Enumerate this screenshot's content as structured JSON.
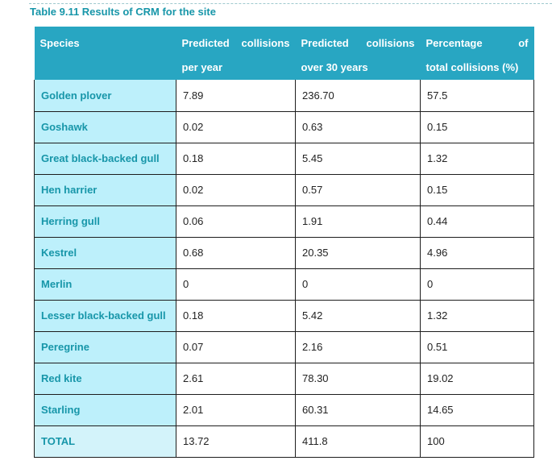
{
  "caption": "Table 9.11 Results of CRM for the site",
  "headers": {
    "species": "Species",
    "per_year_line1_a": "Predicted",
    "per_year_line1_b": "collisions",
    "per_year_line2": "per year",
    "over30_line1_a": "Predicted",
    "over30_line1_b": "collisions",
    "over30_line2": "over 30 years",
    "pct_line1_a": "Percentage",
    "pct_line1_b": "of",
    "pct_line2": "total collisions (%)"
  },
  "rows": [
    {
      "species": "Golden plover",
      "per_year": "7.89",
      "over_30": "236.70",
      "percent": "57.5"
    },
    {
      "species": "Goshawk",
      "per_year": "0.02",
      "over_30": "0.63",
      "percent": "0.15"
    },
    {
      "species": "Great black-backed gull",
      "per_year": "0.18",
      "over_30": "5.45",
      "percent": "1.32"
    },
    {
      "species": "Hen harrier",
      "per_year": "0.02",
      "over_30": "0.57",
      "percent": "0.15"
    },
    {
      "species": "Herring gull",
      "per_year": "0.06",
      "over_30": "1.91",
      "percent": "0.44"
    },
    {
      "species": "Kestrel",
      "per_year": "0.68",
      "over_30": "20.35",
      "percent": "4.96"
    },
    {
      "species": "Merlin",
      "per_year": "0",
      "over_30": "0",
      "percent": "0"
    },
    {
      "species": "Lesser black-backed gull",
      "per_year": "0.18",
      "over_30": "5.42",
      "percent": "1.32"
    },
    {
      "species": "Peregrine",
      "per_year": "0.07",
      "over_30": "2.16",
      "percent": "0.51"
    },
    {
      "species": "Red kite",
      "per_year": "2.61",
      "over_30": "78.30",
      "percent": "19.02"
    },
    {
      "species": "Starling",
      "per_year": "2.01",
      "over_30": "60.31",
      "percent": "14.65"
    },
    {
      "species": "TOTAL",
      "per_year": "13.72",
      "over_30": "411.8",
      "percent": "100"
    }
  ],
  "colors": {
    "header_bg": "#28a6c2",
    "species_bg": "#bdf0fb",
    "accent_text": "#1796a9"
  }
}
